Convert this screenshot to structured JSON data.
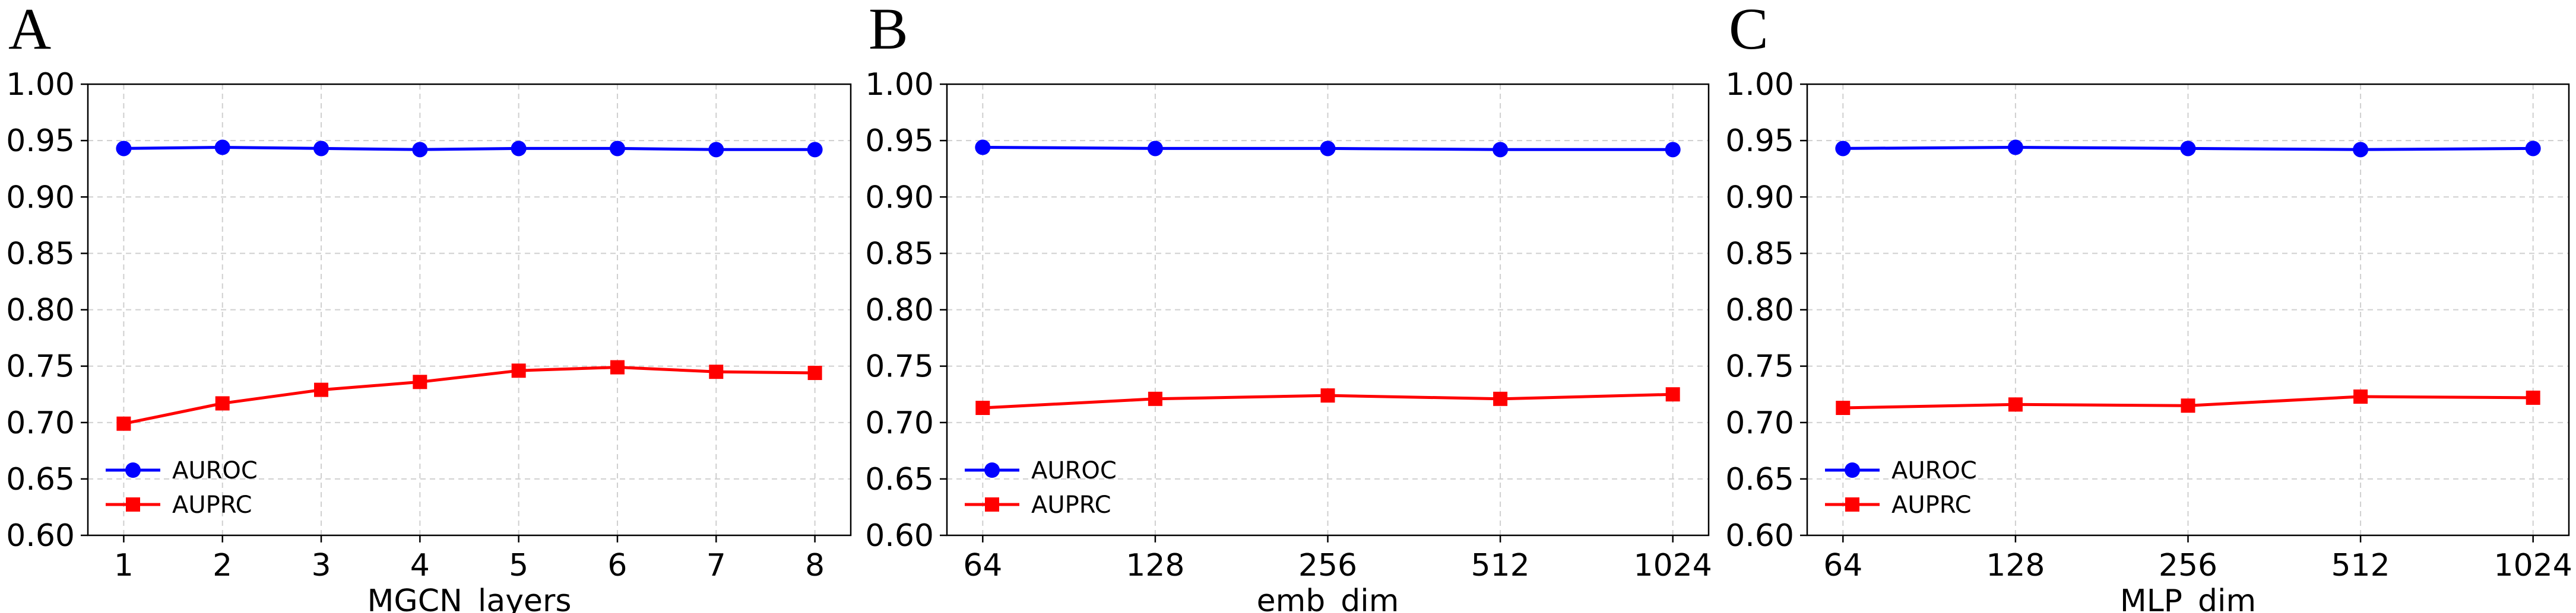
{
  "chart_data": [
    {
      "type": "line",
      "panel_label": "A",
      "xlabel": "MGCN_layers",
      "ylabel": "",
      "categories": [
        "1",
        "2",
        "3",
        "4",
        "5",
        "6",
        "7",
        "8"
      ],
      "ylim": [
        0.6,
        1.0
      ],
      "yticks": [
        "0.60",
        "0.65",
        "0.70",
        "0.75",
        "0.80",
        "0.85",
        "0.90",
        "0.95",
        "1.00"
      ],
      "grid": true,
      "legend_position": "lower-left",
      "series": [
        {
          "name": "AUROC",
          "color": "#0000ff",
          "marker": "circle",
          "values": [
            0.943,
            0.944,
            0.943,
            0.942,
            0.943,
            0.943,
            0.942,
            0.942
          ]
        },
        {
          "name": "AUPRC",
          "color": "#ff0000",
          "marker": "square",
          "values": [
            0.699,
            0.717,
            0.729,
            0.736,
            0.746,
            0.749,
            0.745,
            0.744
          ]
        }
      ]
    },
    {
      "type": "line",
      "panel_label": "B",
      "xlabel": "emb_dim",
      "ylabel": "",
      "categories": [
        "64",
        "128",
        "256",
        "512",
        "1024"
      ],
      "ylim": [
        0.6,
        1.0
      ],
      "yticks": [
        "0.60",
        "0.65",
        "0.70",
        "0.75",
        "0.80",
        "0.85",
        "0.90",
        "0.95",
        "1.00"
      ],
      "grid": true,
      "legend_position": "lower-left",
      "series": [
        {
          "name": "AUROC",
          "color": "#0000ff",
          "marker": "circle",
          "values": [
            0.944,
            0.943,
            0.943,
            0.942,
            0.942
          ]
        },
        {
          "name": "AUPRC",
          "color": "#ff0000",
          "marker": "square",
          "values": [
            0.713,
            0.721,
            0.724,
            0.721,
            0.725
          ]
        }
      ]
    },
    {
      "type": "line",
      "panel_label": "C",
      "xlabel": "MLP_dim",
      "ylabel": "",
      "categories": [
        "64",
        "128",
        "256",
        "512",
        "1024"
      ],
      "ylim": [
        0.6,
        1.0
      ],
      "yticks": [
        "0.60",
        "0.65",
        "0.70",
        "0.75",
        "0.80",
        "0.85",
        "0.90",
        "0.95",
        "1.00"
      ],
      "grid": true,
      "legend_position": "lower-left",
      "series": [
        {
          "name": "AUROC",
          "color": "#0000ff",
          "marker": "circle",
          "values": [
            0.943,
            0.944,
            0.943,
            0.942,
            0.943
          ]
        },
        {
          "name": "AUPRC",
          "color": "#ff0000",
          "marker": "square",
          "values": [
            0.713,
            0.716,
            0.715,
            0.723,
            0.722
          ]
        }
      ]
    }
  ]
}
